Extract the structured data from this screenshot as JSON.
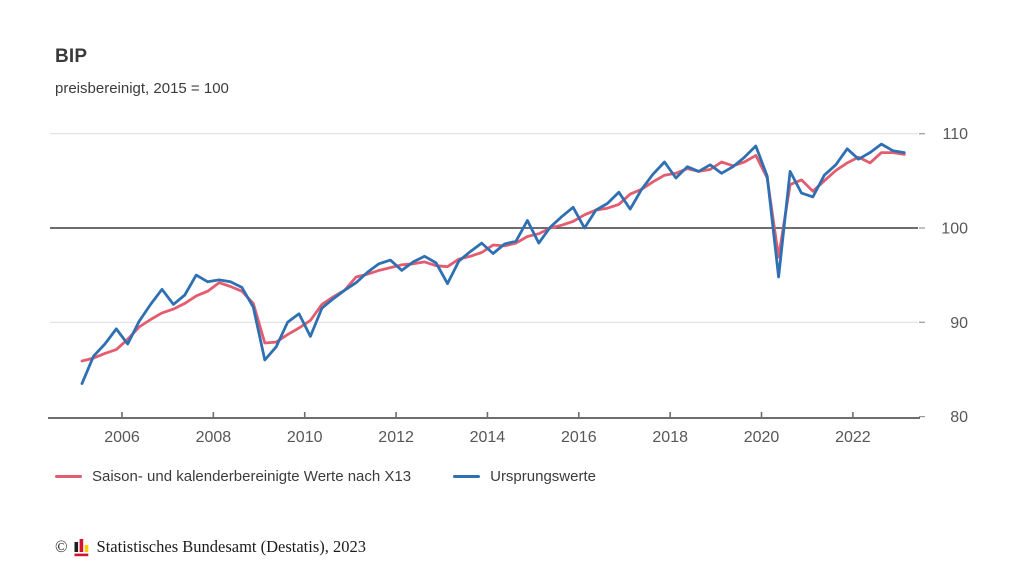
{
  "header": {
    "title": "BIP",
    "subtitle": "preisbereinigt, 2015 = 100"
  },
  "chart_data": {
    "type": "line",
    "title": "BIP",
    "subtitle": "preisbereinigt, 2015 = 100",
    "x_unit": "quarterly",
    "x_start": "2005-Q1",
    "x_end": "2023-Q1",
    "x_tick_labels": [
      "2006",
      "2008",
      "2010",
      "2012",
      "2014",
      "2016",
      "2018",
      "2020",
      "2022"
    ],
    "y_ticks": [
      "80",
      "90",
      "100",
      "110"
    ],
    "ylim": [
      80,
      112
    ],
    "reference_line": 100,
    "grid": "horizontal",
    "legend_position": "bottom",
    "series": [
      {
        "name": "Saison- und kalenderbereinigte Werte nach X13",
        "color": "#e35d6f",
        "values": [
          85.9,
          86.2,
          86.7,
          87.1,
          88.2,
          89.5,
          90.3,
          91.0,
          91.4,
          92.0,
          92.8,
          93.3,
          94.2,
          93.8,
          93.3,
          92.0,
          87.8,
          87.9,
          88.7,
          89.4,
          90.2,
          91.9,
          92.7,
          93.4,
          94.8,
          95.1,
          95.5,
          95.8,
          96.1,
          96.2,
          96.4,
          96.0,
          95.9,
          96.7,
          97.0,
          97.4,
          98.2,
          98.1,
          98.4,
          99.1,
          99.4,
          100.0,
          100.3,
          100.7,
          101.4,
          101.9,
          102.1,
          102.5,
          103.6,
          104.1,
          104.9,
          105.6,
          105.8,
          106.3,
          106.0,
          106.2,
          107.0,
          106.6,
          107.0,
          107.7,
          105.3,
          96.9,
          104.6,
          105.1,
          103.9,
          105.0,
          106.1,
          106.9,
          107.5,
          106.9,
          108.0,
          108.0,
          107.8
        ]
      },
      {
        "name": "Ursprungswerte",
        "color": "#2f70b2",
        "values": [
          83.5,
          86.4,
          87.7,
          89.3,
          87.7,
          90.1,
          91.9,
          93.5,
          91.9,
          92.9,
          95.0,
          94.3,
          94.5,
          94.3,
          93.7,
          91.6,
          86.0,
          87.4,
          90.0,
          90.9,
          88.5,
          91.5,
          92.5,
          93.4,
          94.2,
          95.3,
          96.2,
          96.6,
          95.5,
          96.4,
          97.0,
          96.3,
          94.1,
          96.5,
          97.5,
          98.4,
          97.3,
          98.3,
          98.6,
          100.8,
          98.4,
          100.1,
          101.2,
          102.2,
          100.0,
          101.9,
          102.6,
          103.8,
          102.0,
          104.1,
          105.7,
          107.0,
          105.3,
          106.5,
          106.0,
          106.7,
          105.8,
          106.5,
          107.5,
          108.7,
          105.5,
          94.8,
          106.0,
          103.7,
          103.3,
          105.6,
          106.7,
          108.4,
          107.3,
          108.0,
          108.9,
          108.2,
          108.0
        ]
      }
    ]
  },
  "footer": {
    "copyright_symbol": "©",
    "source_text": "Statistisches Bundesamt (Destatis), 2023",
    "logo_colors": {
      "bar1": "#1d1d1b",
      "bar2": "#d51130",
      "bar3": "#ffcc00",
      "baseline": "#d51130"
    }
  }
}
